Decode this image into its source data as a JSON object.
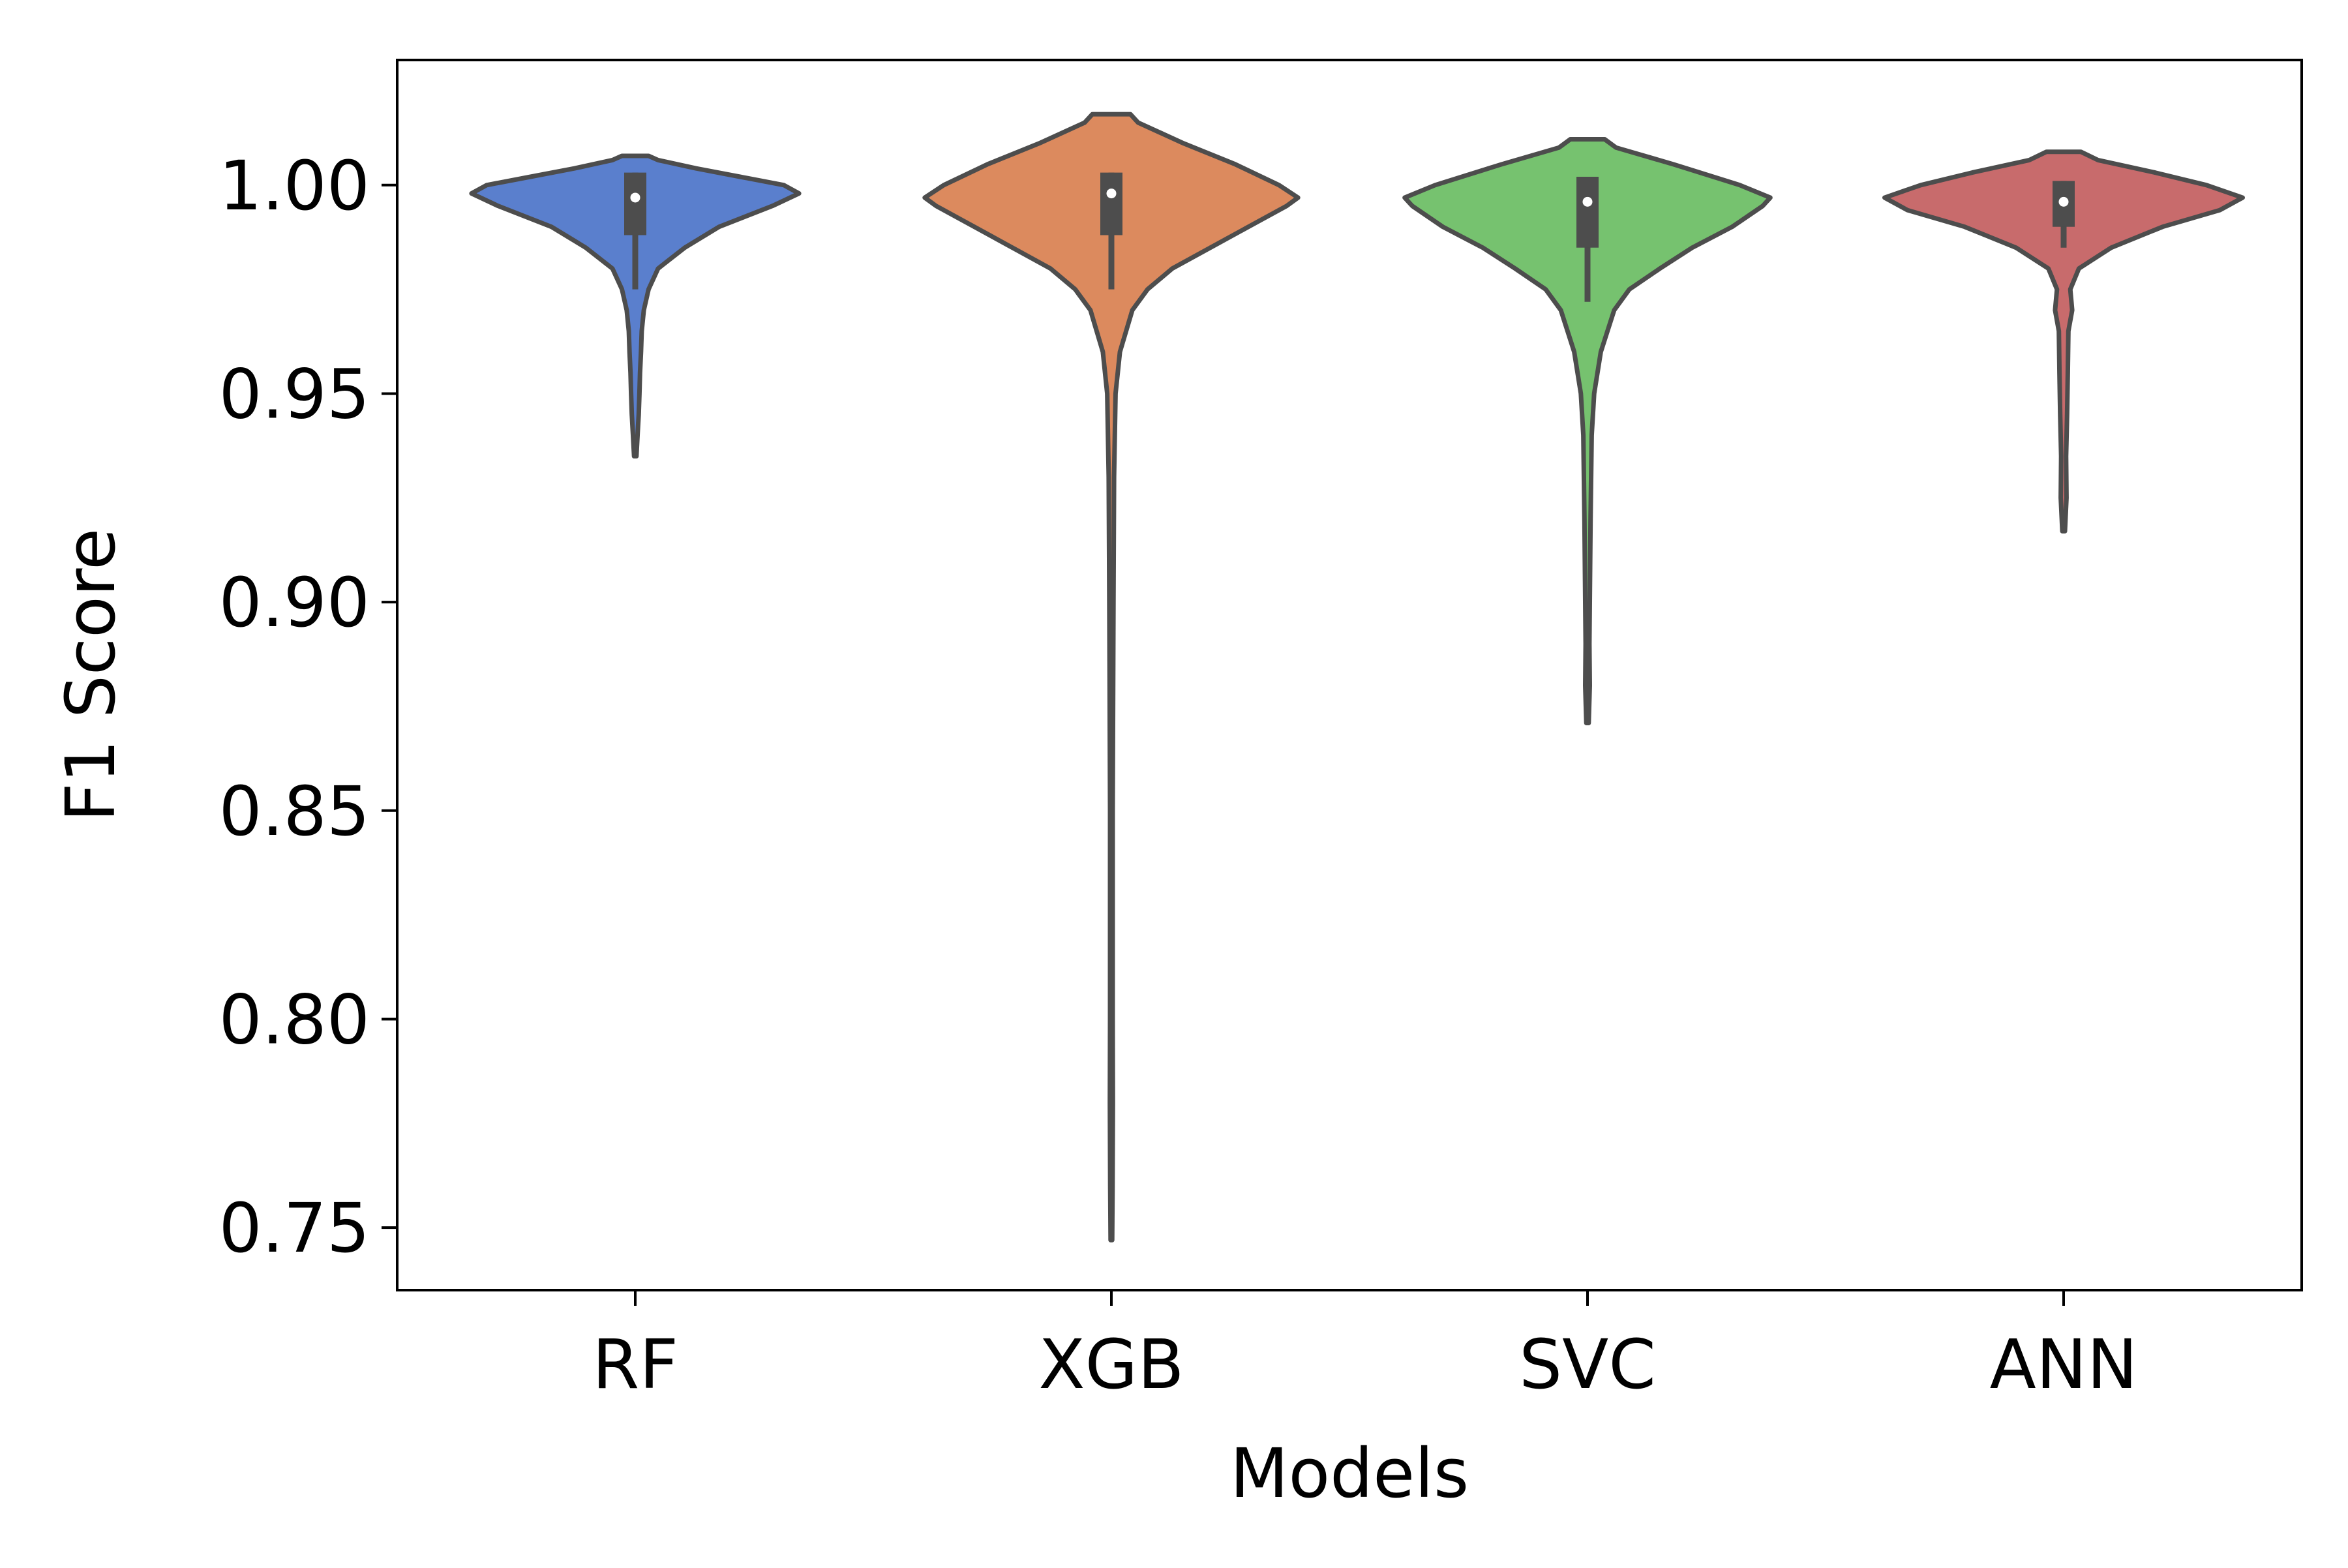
{
  "chart_data": {
    "type": "violin",
    "title": "",
    "xlabel": "Models",
    "ylabel": "F1 Score",
    "ylim": [
      0.735,
      1.03
    ],
    "yticks": [
      0.75,
      0.8,
      0.85,
      0.9,
      0.95,
      1.0
    ],
    "ytick_labels": [
      "0.75",
      "0.80",
      "0.85",
      "0.90",
      "0.95",
      "1.00"
    ],
    "categories": [
      "RF",
      "XGB",
      "SVC",
      "ANN"
    ],
    "grid": false,
    "legend": "none",
    "series": [
      {
        "category": "RF",
        "color": "#5a7fcd",
        "median": 0.997,
        "q1": 0.988,
        "q3": 1.003,
        "whisker_low": 0.975,
        "whisker_high": 1.003,
        "min": 0.935,
        "max": 1.007,
        "density": [
          [
            0.935,
            0.006
          ],
          [
            0.94,
            0.012
          ],
          [
            0.945,
            0.018
          ],
          [
            0.95,
            0.022
          ],
          [
            0.955,
            0.025
          ],
          [
            0.96,
            0.03
          ],
          [
            0.965,
            0.034
          ],
          [
            0.97,
            0.045
          ],
          [
            0.975,
            0.07
          ],
          [
            0.98,
            0.12
          ],
          [
            0.985,
            0.26
          ],
          [
            0.99,
            0.44
          ],
          [
            0.995,
            0.72
          ],
          [
            0.998,
            0.86
          ],
          [
            1.0,
            0.78
          ],
          [
            1.002,
            0.55
          ],
          [
            1.004,
            0.32
          ],
          [
            1.006,
            0.12
          ],
          [
            1.007,
            0.07
          ]
        ]
      },
      {
        "category": "XGB",
        "color": "#dc8a5e",
        "median": 0.998,
        "q1": 0.988,
        "q3": 1.003,
        "whisker_low": 0.975,
        "whisker_high": 1.003,
        "min": 0.747,
        "max": 1.017,
        "density": [
          [
            0.747,
            0.004
          ],
          [
            0.76,
            0.006
          ],
          [
            0.78,
            0.008
          ],
          [
            0.8,
            0.007
          ],
          [
            0.85,
            0.007
          ],
          [
            0.9,
            0.011
          ],
          [
            0.93,
            0.014
          ],
          [
            0.95,
            0.022
          ],
          [
            0.96,
            0.045
          ],
          [
            0.97,
            0.11
          ],
          [
            0.975,
            0.19
          ],
          [
            0.98,
            0.32
          ],
          [
            0.985,
            0.52
          ],
          [
            0.99,
            0.72
          ],
          [
            0.995,
            0.92
          ],
          [
            0.997,
            0.98
          ],
          [
            1.0,
            0.88
          ],
          [
            1.005,
            0.65
          ],
          [
            1.01,
            0.38
          ],
          [
            1.015,
            0.14
          ],
          [
            1.017,
            0.1
          ]
        ]
      },
      {
        "category": "SVC",
        "color": "#76c26f",
        "median": 0.996,
        "q1": 0.985,
        "q3": 1.002,
        "whisker_low": 0.972,
        "whisker_high": 1.002,
        "min": 0.871,
        "max": 1.011,
        "density": [
          [
            0.871,
            0.006
          ],
          [
            0.88,
            0.012
          ],
          [
            0.89,
            0.01
          ],
          [
            0.9,
            0.012
          ],
          [
            0.92,
            0.016
          ],
          [
            0.94,
            0.022
          ],
          [
            0.95,
            0.035
          ],
          [
            0.96,
            0.07
          ],
          [
            0.97,
            0.14
          ],
          [
            0.975,
            0.22
          ],
          [
            0.98,
            0.38
          ],
          [
            0.985,
            0.55
          ],
          [
            0.99,
            0.76
          ],
          [
            0.995,
            0.92
          ],
          [
            0.997,
            0.96
          ],
          [
            1.0,
            0.8
          ],
          [
            1.005,
            0.45
          ],
          [
            1.009,
            0.15
          ],
          [
            1.011,
            0.09
          ]
        ]
      },
      {
        "category": "ANN",
        "color": "#c86b6c",
        "median": 0.996,
        "q1": 0.99,
        "q3": 1.001,
        "whisker_low": 0.985,
        "whisker_high": 1.001,
        "min": 0.917,
        "max": 1.008,
        "density": [
          [
            0.917,
            0.007
          ],
          [
            0.925,
            0.015
          ],
          [
            0.935,
            0.013
          ],
          [
            0.945,
            0.018
          ],
          [
            0.955,
            0.022
          ],
          [
            0.965,
            0.025
          ],
          [
            0.97,
            0.045
          ],
          [
            0.975,
            0.035
          ],
          [
            0.98,
            0.08
          ],
          [
            0.985,
            0.25
          ],
          [
            0.99,
            0.52
          ],
          [
            0.994,
            0.82
          ],
          [
            0.997,
            0.94
          ],
          [
            1.0,
            0.75
          ],
          [
            1.003,
            0.48
          ],
          [
            1.006,
            0.18
          ],
          [
            1.008,
            0.09
          ]
        ]
      }
    ]
  }
}
